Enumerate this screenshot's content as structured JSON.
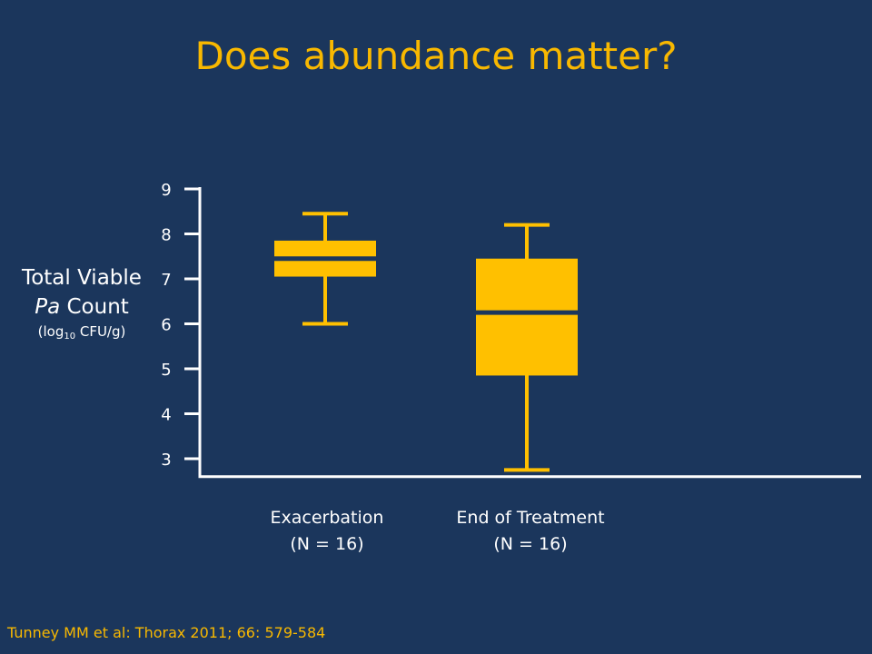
{
  "slide": {
    "title": "Does abundance matter?",
    "citation": "Tunney MM et al: Thorax 2011; 66: 579-584"
  },
  "colors": {
    "background": "#1b365c",
    "accent": "#f8b800",
    "box": "#ffc000",
    "axis": "#ffffff",
    "text": "#ffffff"
  },
  "y_axis_label": {
    "line1": "Total Viable",
    "line2_italic": "Pa",
    "line2_rest": " Count",
    "line3_pre": "(log",
    "line3_sub": "10",
    "line3_post": " CFU/g)"
  },
  "chart_data": {
    "type": "box",
    "ylim": [
      2.6,
      9.0
    ],
    "yticks": [
      3,
      4,
      5,
      6,
      7,
      8,
      9
    ],
    "ytick_labels": [
      "3",
      "4",
      "5",
      "6",
      "7",
      "8",
      "9"
    ],
    "grid": false,
    "categories": [
      {
        "line1": "Exacerbation",
        "line2": "(N = 16)"
      },
      {
        "line1": "End of Treatment",
        "line2": "(N = 16)"
      }
    ],
    "boxes": [
      {
        "whisker_low": 6.0,
        "q1": 7.05,
        "median": 7.45,
        "q3": 7.85,
        "whisker_high": 8.45
      },
      {
        "whisker_low": 2.75,
        "q1": 4.85,
        "median": 6.25,
        "q3": 7.45,
        "whisker_high": 8.2
      }
    ]
  }
}
